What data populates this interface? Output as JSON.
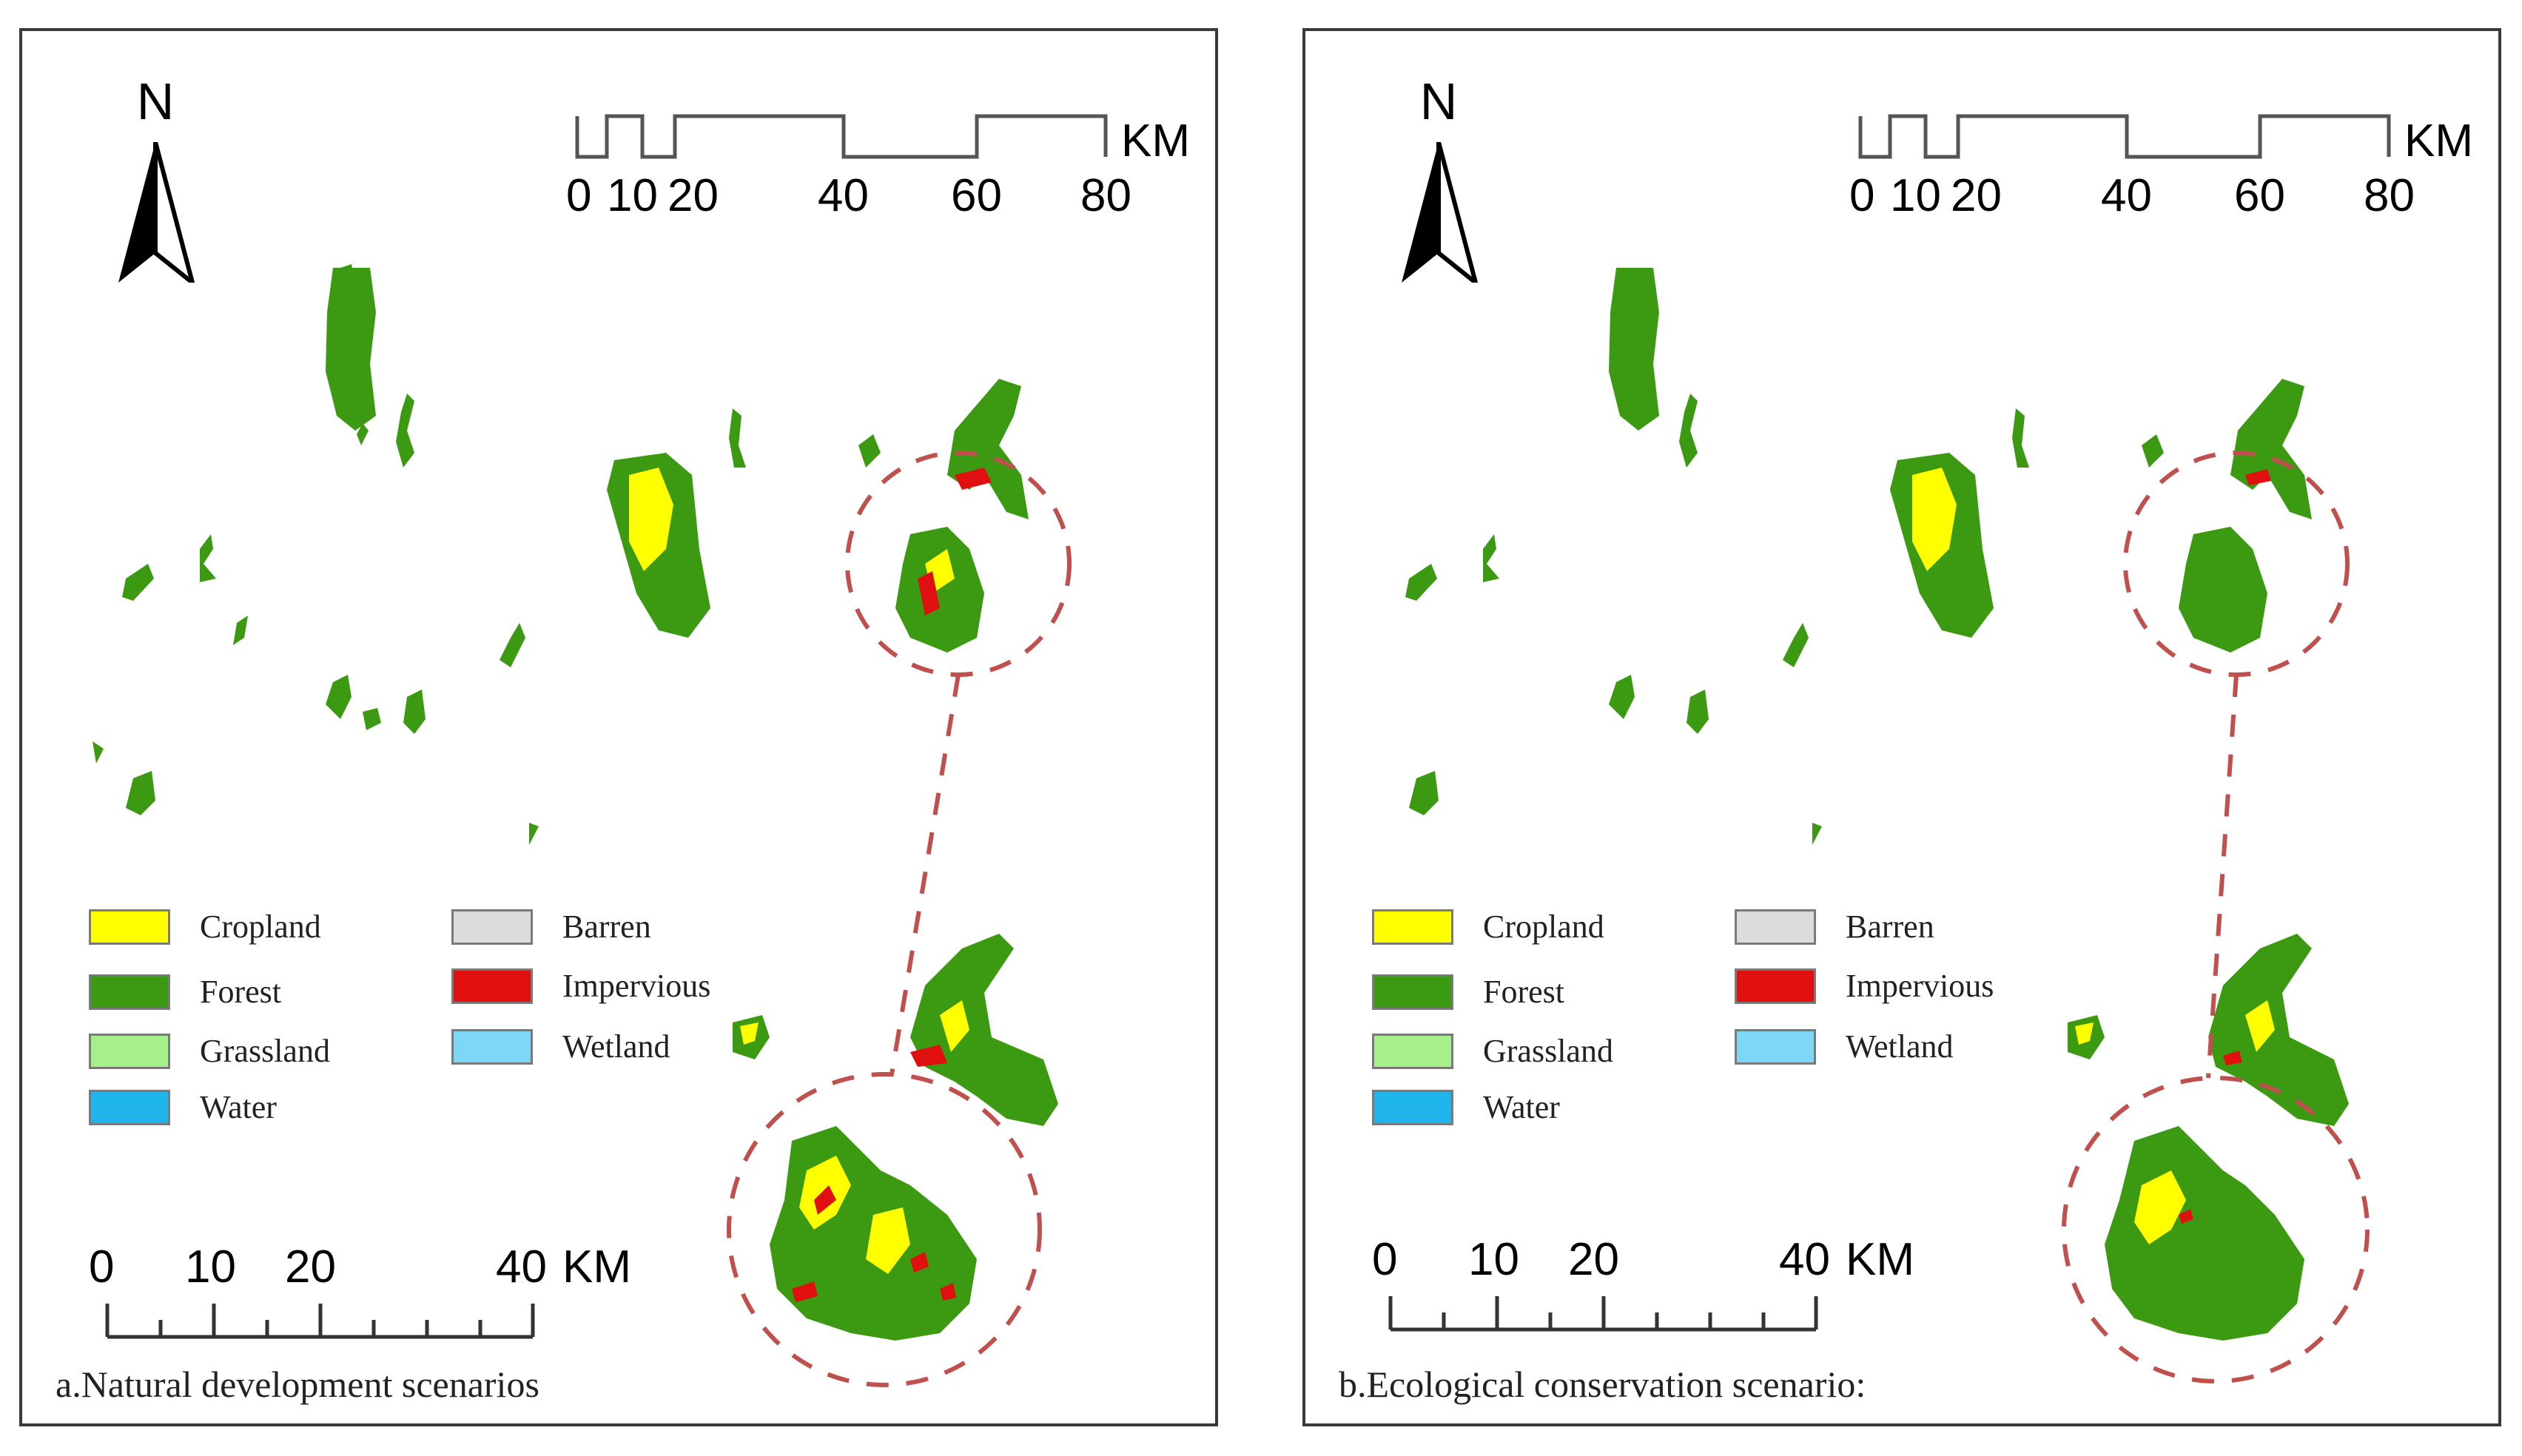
{
  "map_data": {
    "panels": [
      {
        "id": "a",
        "caption": "a.Natural development scenarios",
        "north_label": "N",
        "top_scale": {
          "ticks": [
            "0",
            "10",
            "20",
            "40",
            "60",
            "80"
          ],
          "unit": "KM"
        },
        "inset_scale": {
          "ticks": [
            "0",
            "10",
            "20",
            "40"
          ],
          "unit": "KM"
        },
        "scenario": "natural"
      },
      {
        "id": "b",
        "caption": "b.Ecological conservation scenario:",
        "north_label": "N",
        "top_scale": {
          "ticks": [
            "0",
            "10",
            "20",
            "40",
            "60",
            "80"
          ],
          "unit": "KM"
        },
        "inset_scale": {
          "ticks": [
            "0",
            "10",
            "20",
            "40"
          ],
          "unit": "KM"
        },
        "scenario": "conservation"
      }
    ],
    "legend": [
      {
        "label": "Cropland",
        "color": "#ffff00"
      },
      {
        "label": "Forest",
        "color": "#3c9a12"
      },
      {
        "label": "Grassland",
        "color": "#a6f08c"
      },
      {
        "label": "Water",
        "color": "#1fb4ec"
      },
      {
        "label": "Barren",
        "color": "#dcdcdc"
      },
      {
        "label": "Impervious",
        "color": "#e01010"
      },
      {
        "label": "Wetland",
        "color": "#7fd7f7"
      }
    ],
    "highlight_color": "#c0504d"
  }
}
